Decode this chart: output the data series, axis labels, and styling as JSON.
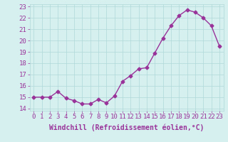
{
  "x": [
    0,
    1,
    2,
    3,
    4,
    5,
    6,
    7,
    8,
    9,
    10,
    11,
    12,
    13,
    14,
    15,
    16,
    17,
    18,
    19,
    20,
    21,
    22,
    23
  ],
  "y": [
    15.0,
    15.0,
    15.0,
    15.5,
    14.9,
    14.7,
    14.4,
    14.4,
    14.8,
    14.5,
    15.1,
    16.4,
    16.9,
    17.5,
    17.6,
    18.9,
    20.2,
    21.3,
    22.2,
    22.7,
    22.5,
    22.0,
    21.3,
    19.5
  ],
  "line_color": "#993399",
  "marker": "D",
  "markersize": 2.5,
  "linewidth": 1.0,
  "xlabel": "Windchill (Refroidissement éolien,°C)",
  "xlim": [
    -0.5,
    23.5
  ],
  "ylim": [
    13.8,
    23.2
  ],
  "yticks": [
    14,
    15,
    16,
    17,
    18,
    19,
    20,
    21,
    22,
    23
  ],
  "xticks": [
    0,
    1,
    2,
    3,
    4,
    5,
    6,
    7,
    8,
    9,
    10,
    11,
    12,
    13,
    14,
    15,
    16,
    17,
    18,
    19,
    20,
    21,
    22,
    23
  ],
  "bg_color": "#d6f0f0",
  "grid_color": "#b0d8d8",
  "label_color": "#993399",
  "xlabel_fontsize": 7,
  "tick_fontsize": 6.5
}
